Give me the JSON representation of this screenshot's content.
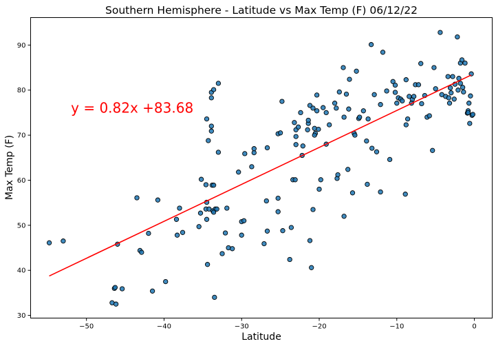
{
  "chart_data": {
    "type": "scatter",
    "title": "Southern Hemisphere - Latitude vs Max Temp (F) 06/12/22",
    "xlabel": "Latitude",
    "ylabel": "Max Temp (F)",
    "xlim": [
      -57.2,
      2.3
    ],
    "ylim": [
      29.4,
      96.1
    ],
    "xticks": [
      -50,
      -40,
      -30,
      -20,
      -10,
      0
    ],
    "yticks": [
      30,
      40,
      50,
      60,
      70,
      80,
      90
    ],
    "grid": false,
    "marker_color": "#1f77b4",
    "marker_edge": "#000000",
    "regression": {
      "slope": 0.82,
      "intercept": 83.68,
      "x_range": [
        -54.8,
        -0.4
      ],
      "color": "#ff0000",
      "label": "y = 0.82x +83.68",
      "label_anchor": [
        -52,
        75
      ]
    },
    "points": [
      [
        -54.8,
        46.1
      ],
      [
        -53.0,
        46.5
      ],
      [
        -46.7,
        32.8
      ],
      [
        -46.4,
        36.0
      ],
      [
        -46.2,
        32.5
      ],
      [
        -46.0,
        45.8
      ],
      [
        -45.4,
        35.9
      ],
      [
        -46.3,
        36.2
      ],
      [
        -43.5,
        56.1
      ],
      [
        -43.1,
        44.4
      ],
      [
        -42.9,
        44.0
      ],
      [
        -42.0,
        48.2
      ],
      [
        -41.5,
        35.4
      ],
      [
        -40.8,
        55.6
      ],
      [
        -39.8,
        37.5
      ],
      [
        -38.4,
        51.3
      ],
      [
        -38.3,
        47.8
      ],
      [
        -38.0,
        53.8
      ],
      [
        -37.6,
        48.4
      ],
      [
        -35.5,
        49.7
      ],
      [
        -35.3,
        52.7
      ],
      [
        -35.2,
        60.2
      ],
      [
        -34.6,
        53.6
      ],
      [
        -34.5,
        55.1
      ],
      [
        -34.6,
        59.0
      ],
      [
        -34.5,
        51.3
      ],
      [
        -34.2,
        53.6
      ],
      [
        -34.4,
        41.3
      ],
      [
        -34.5,
        73.6
      ],
      [
        -34.3,
        68.8
      ],
      [
        -33.9,
        70.9
      ],
      [
        -33.9,
        72.0
      ],
      [
        -33.9,
        78.3
      ],
      [
        -33.9,
        79.5
      ],
      [
        -33.6,
        80.1
      ],
      [
        -33.0,
        81.5
      ],
      [
        -33.8,
        58.9
      ],
      [
        -33.6,
        58.9
      ],
      [
        -33.7,
        53.2
      ],
      [
        -33.4,
        53.6
      ],
      [
        -33.6,
        52.9
      ],
      [
        -33.5,
        34.0
      ],
      [
        -33.2,
        53.6
      ],
      [
        -33.0,
        66.2
      ],
      [
        -32.5,
        43.7
      ],
      [
        -32.1,
        48.3
      ],
      [
        -31.9,
        53.8
      ],
      [
        -31.7,
        45.0
      ],
      [
        -31.2,
        44.8
      ],
      [
        -30.4,
        61.8
      ],
      [
        -30.0,
        50.8
      ],
      [
        -30.0,
        47.8
      ],
      [
        -29.7,
        51.0
      ],
      [
        -29.6,
        65.9
      ],
      [
        -28.7,
        63.0
      ],
      [
        -28.4,
        66.1
      ],
      [
        -28.4,
        67.0
      ],
      [
        -26.7,
        67.2
      ],
      [
        -26.8,
        55.4
      ],
      [
        -26.7,
        48.7
      ],
      [
        -27.1,
        45.9
      ],
      [
        -25.3,
        53.0
      ],
      [
        -25.3,
        56.0
      ],
      [
        -25.3,
        70.3
      ],
      [
        -25.0,
        70.5
      ],
      [
        -24.7,
        48.8
      ],
      [
        -24.8,
        77.5
      ],
      [
        -23.8,
        42.4
      ],
      [
        -23.6,
        49.5
      ],
      [
        -23.4,
        60.1
      ],
      [
        -23.1,
        60.1
      ],
      [
        -23.2,
        72.8
      ],
      [
        -23.0,
        71.2
      ],
      [
        -22.7,
        71.8
      ],
      [
        -23.0,
        69.7
      ],
      [
        -23.0,
        67.9
      ],
      [
        -22.4,
        75.0
      ],
      [
        -22.1,
        67.6
      ],
      [
        -22.2,
        65.5
      ],
      [
        -21.5,
        71.2
      ],
      [
        -21.4,
        72.6
      ],
      [
        -21.4,
        73.3
      ],
      [
        -21.2,
        76.6
      ],
      [
        -20.8,
        76.0
      ],
      [
        -21.2,
        46.6
      ],
      [
        -21.0,
        40.6
      ],
      [
        -20.6,
        71.5
      ],
      [
        -20.5,
        70.4
      ],
      [
        -20.6,
        70.0
      ],
      [
        -20.8,
        53.5
      ],
      [
        -20.3,
        75.4
      ],
      [
        -20.3,
        78.9
      ],
      [
        -20.1,
        71.3
      ],
      [
        -20.0,
        58.0
      ],
      [
        -19.8,
        60.1
      ],
      [
        -19.5,
        76.1
      ],
      [
        -19.1,
        75.0
      ],
      [
        -19.1,
        68.0
      ],
      [
        -18.7,
        72.3
      ],
      [
        -18.0,
        77.1
      ],
      [
        -17.8,
        76.0
      ],
      [
        -17.7,
        60.4
      ],
      [
        -17.6,
        61.2
      ],
      [
        -17.4,
        79.6
      ],
      [
        -16.9,
        85.0
      ],
      [
        -16.8,
        52.0
      ],
      [
        -16.8,
        74.0
      ],
      [
        -16.5,
        79.1
      ],
      [
        -16.3,
        62.4
      ],
      [
        -16.2,
        75.8
      ],
      [
        -16.1,
        82.4
      ],
      [
        -15.7,
        57.2
      ],
      [
        -15.5,
        70.4
      ],
      [
        -15.4,
        70.0
      ],
      [
        -15.2,
        84.2
      ],
      [
        -14.9,
        73.7
      ],
      [
        -14.8,
        74.0
      ],
      [
        -14.3,
        75.4
      ],
      [
        -13.7,
        73.6
      ],
      [
        -13.9,
        68.7
      ],
      [
        -13.8,
        59.1
      ],
      [
        -13.3,
        90.1
      ],
      [
        -13.2,
        67.1
      ],
      [
        -12.9,
        79.0
      ],
      [
        -12.6,
        66.3
      ],
      [
        -12.1,
        57.4
      ],
      [
        -12.1,
        76.8
      ],
      [
        -11.8,
        88.4
      ],
      [
        -11.3,
        79.8
      ],
      [
        -10.9,
        64.6
      ],
      [
        -10.5,
        81.9
      ],
      [
        -10.2,
        79.5
      ],
      [
        -10.2,
        81.1
      ],
      [
        -10.0,
        77.1
      ],
      [
        -9.8,
        78.3
      ],
      [
        -9.5,
        78.0
      ],
      [
        -9.3,
        77.6
      ],
      [
        -8.9,
        56.9
      ],
      [
        -8.8,
        82.3
      ],
      [
        -8.8,
        72.3
      ],
      [
        -8.6,
        73.6
      ],
      [
        -8.4,
        78.6
      ],
      [
        -8.0,
        77.9
      ],
      [
        -8.1,
        77.1
      ],
      [
        -7.8,
        78.6
      ],
      [
        -7.6,
        81.2
      ],
      [
        -7.2,
        81.2
      ],
      [
        -6.8,
        77.0
      ],
      [
        -6.9,
        85.9
      ],
      [
        -6.4,
        78.8
      ],
      [
        -6.1,
        74.0
      ],
      [
        -5.8,
        74.3
      ],
      [
        -5.4,
        66.6
      ],
      [
        -5.2,
        85.0
      ],
      [
        -5.0,
        80.3
      ],
      [
        -4.4,
        92.8
      ],
      [
        -4.2,
        79.0
      ],
      [
        -3.7,
        78.6
      ],
      [
        -3.4,
        83.0
      ],
      [
        -3.3,
        78.3
      ],
      [
        -3.2,
        77.1
      ],
      [
        -3.1,
        80.5
      ],
      [
        -3.0,
        79.4
      ],
      [
        -2.8,
        83.0
      ],
      [
        -2.5,
        81.3
      ],
      [
        -2.6,
        78.0
      ],
      [
        -2.2,
        91.8
      ],
      [
        -2.1,
        80.0
      ],
      [
        -2.0,
        82.6
      ],
      [
        -1.8,
        81.5
      ],
      [
        -1.8,
        86.0
      ],
      [
        -1.6,
        86.7
      ],
      [
        -1.5,
        80.6
      ],
      [
        -1.4,
        79.6
      ],
      [
        -1.2,
        86.0
      ],
      [
        -0.9,
        74.9
      ],
      [
        -0.8,
        75.4
      ],
      [
        -0.8,
        75.0
      ],
      [
        -0.7,
        77.1
      ],
      [
        -0.6,
        72.6
      ],
      [
        -0.5,
        78.7
      ],
      [
        -0.4,
        83.6
      ],
      [
        -0.3,
        74.4
      ],
      [
        -0.2,
        74.6
      ]
    ]
  }
}
